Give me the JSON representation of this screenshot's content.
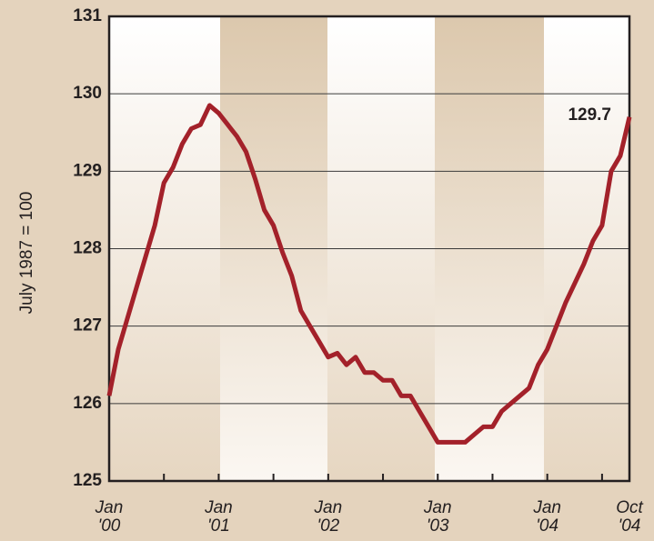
{
  "chart_data": {
    "type": "line",
    "y_label": "July 1987 = 100",
    "annotation": "129.7",
    "categories": [
      "Jan\n'00",
      null,
      null,
      null,
      null,
      null,
      null,
      null,
      null,
      null,
      null,
      null,
      "Jan\n'01",
      null,
      null,
      null,
      null,
      null,
      null,
      null,
      null,
      null,
      null,
      null,
      "Jan\n'02",
      null,
      null,
      null,
      null,
      null,
      null,
      null,
      null,
      null,
      null,
      null,
      "Jan\n'03",
      null,
      null,
      null,
      null,
      null,
      null,
      null,
      null,
      null,
      null,
      null,
      "Jan\n'04",
      null,
      null,
      null,
      null,
      null,
      null,
      null,
      null,
      "Oct\n'04"
    ],
    "values": [
      126.1,
      126.7,
      127.1,
      127.5,
      127.9,
      128.3,
      128.85,
      129.05,
      129.35,
      129.55,
      129.6,
      129.85,
      129.75,
      129.6,
      129.45,
      129.25,
      128.9,
      128.5,
      128.3,
      127.95,
      127.65,
      127.2,
      127.0,
      126.8,
      126.6,
      126.65,
      126.5,
      126.6,
      126.4,
      126.4,
      126.3,
      126.3,
      126.1,
      126.1,
      125.9,
      125.7,
      125.5,
      125.5,
      125.5,
      125.5,
      125.6,
      125.7,
      125.7,
      125.9,
      126.0,
      126.1,
      126.2,
      126.5,
      126.7,
      127.0,
      127.3,
      127.55,
      127.8,
      128.1,
      128.3,
      129.0,
      129.2,
      129.7
    ],
    "color": "#a3212a",
    "ylim": [
      125,
      131
    ],
    "yticks": [
      125,
      126,
      127,
      128,
      129,
      130,
      131
    ],
    "grid": true
  }
}
